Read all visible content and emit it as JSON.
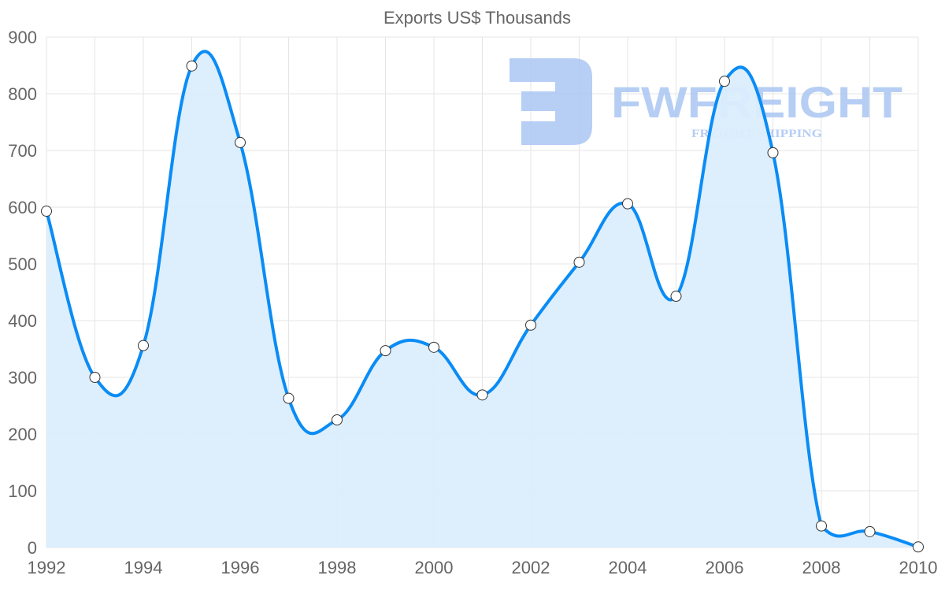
{
  "chart_data": {
    "type": "line",
    "title": "Exports US$ Thousands",
    "xlabel": "",
    "ylabel": "",
    "x": [
      1992,
      1993,
      1994,
      1995,
      1996,
      1997,
      1998,
      1999,
      2000,
      2001,
      2002,
      2003,
      2004,
      2005,
      2006,
      2007,
      2008,
      2009,
      2010
    ],
    "series": [
      {
        "name": "Exports US$ Thousands",
        "values": [
          593,
          300,
          356,
          849,
          714,
          263,
          225,
          347,
          353,
          269,
          392,
          503,
          606,
          443,
          822,
          696,
          38,
          28,
          1
        ],
        "color": "#0a8cf5",
        "fill": "#dbedfd"
      }
    ],
    "ylim": [
      0,
      900
    ],
    "xlim": [
      1992,
      2010
    ],
    "y_ticks": [
      "0",
      "100",
      "200",
      "300",
      "400",
      "500",
      "600",
      "700",
      "800",
      "900"
    ],
    "x_ticks": [
      "1992",
      "1994",
      "1996",
      "1998",
      "2000",
      "2002",
      "2004",
      "2006",
      "2008",
      "2010"
    ],
    "grid": true,
    "legend": "none"
  },
  "watermark": {
    "brand": "FWFREIGHT",
    "tagline": "FREIGHT SHIPPING",
    "color": "#aac6f3"
  }
}
